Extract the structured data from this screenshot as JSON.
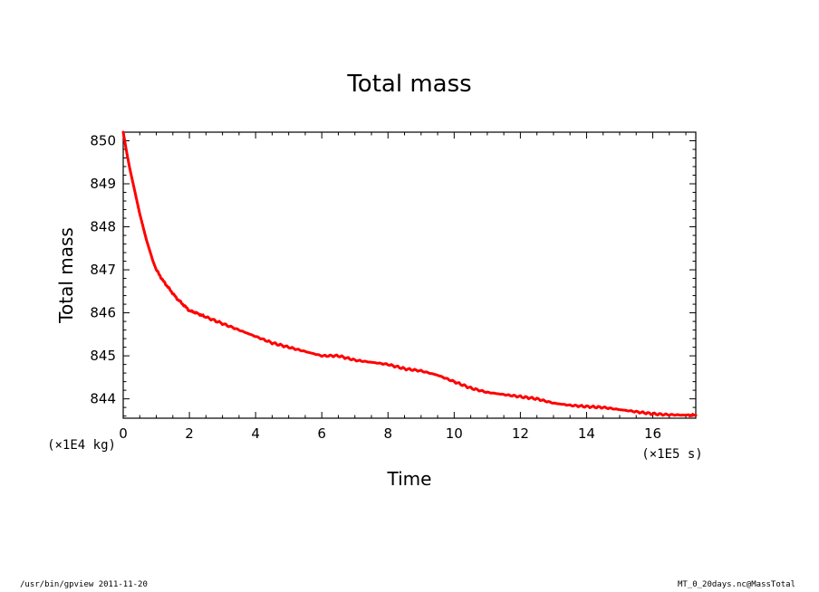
{
  "chart_data": {
    "type": "line",
    "title": "Total mass",
    "xlabel": "Time",
    "ylabel": "Total mass",
    "x_unit_label": "(×1E5 s)",
    "y_unit_label": "(×1E4 kg)",
    "xlim": [
      0,
      17.3
    ],
    "ylim": [
      843.55,
      850.2
    ],
    "xticks": [
      0,
      2,
      4,
      6,
      8,
      10,
      12,
      14,
      16
    ],
    "xtick_labels": [
      "0",
      "2",
      "4",
      "6",
      "8",
      "10",
      "12",
      "14",
      "16"
    ],
    "yticks": [
      844,
      845,
      846,
      847,
      848,
      849,
      850
    ],
    "ytick_labels": [
      "844",
      "845",
      "846",
      "847",
      "848",
      "849",
      "850"
    ],
    "grid": false,
    "series_color": "#ff0000",
    "series": [
      {
        "x": [
          0,
          0.1,
          0.2,
          0.3,
          0.4,
          0.5,
          0.6,
          0.7,
          0.8,
          0.9,
          1.0,
          1.2,
          1.4,
          1.6,
          1.8,
          2.0,
          2.2,
          2.5,
          3.0,
          3.5,
          4.0,
          4.5,
          5.0,
          5.5,
          6.0,
          6.5,
          7.0,
          7.5,
          8.0,
          8.5,
          9.0,
          9.5,
          10.0,
          10.5,
          11.0,
          11.5,
          12.0,
          12.5,
          13.0,
          13.5,
          14.0,
          14.5,
          15.0,
          15.5,
          16.0,
          16.5,
          17.0,
          17.3
        ],
        "y": [
          850.2,
          849.75,
          849.35,
          849.0,
          848.65,
          848.3,
          848.0,
          847.7,
          847.45,
          847.2,
          847.0,
          846.75,
          846.55,
          846.35,
          846.2,
          846.05,
          846.0,
          845.9,
          845.75,
          845.6,
          845.45,
          845.3,
          845.2,
          845.1,
          845.0,
          845.0,
          844.9,
          844.85,
          844.8,
          844.7,
          844.65,
          844.55,
          844.4,
          844.25,
          844.15,
          844.1,
          844.05,
          844.0,
          843.9,
          843.85,
          843.82,
          843.8,
          843.75,
          843.7,
          843.65,
          843.63,
          843.62,
          843.62
        ]
      }
    ]
  },
  "footer": {
    "left": "/usr/bin/gpview  2011-11-20",
    "right": "MT_0_20days.nc@MassTotal"
  }
}
